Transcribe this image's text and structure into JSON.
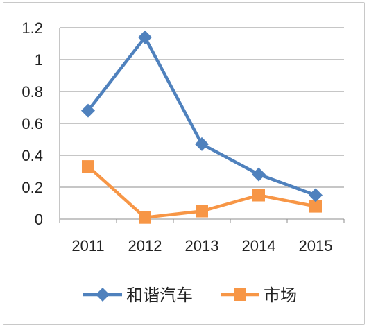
{
  "chart_data": {
    "type": "line",
    "categories": [
      "2011",
      "2012",
      "2013",
      "2014",
      "2015"
    ],
    "series": [
      {
        "name": "和谐汽车",
        "values": [
          0.68,
          1.14,
          0.47,
          0.28,
          0.15
        ],
        "color": "#4f81bd",
        "marker": "diamond"
      },
      {
        "name": "市场",
        "values": [
          0.33,
          0.01,
          0.05,
          0.15,
          0.08
        ],
        "color": "#f79646",
        "marker": "square"
      }
    ],
    "yticks": [
      "0",
      "0.2",
      "0.4",
      "0.6",
      "0.8",
      "1",
      "1.2"
    ],
    "ylim": [
      0,
      1.2
    ],
    "grid": true,
    "legend": "bottom",
    "title": "",
    "xlabel": "",
    "ylabel": ""
  }
}
